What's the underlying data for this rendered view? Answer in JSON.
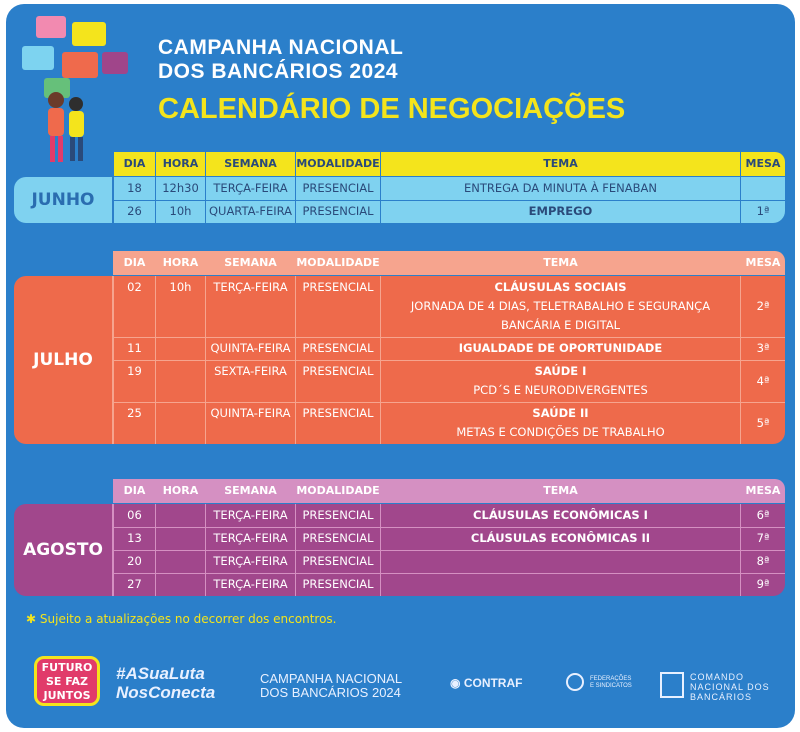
{
  "header": {
    "title_line1": "CAMPANHA NACIONAL",
    "title_line2": "DOS BANCÁRIOS 2024",
    "subtitle": "CALENDÁRIO DE NEGOCIAÇÕES"
  },
  "columns": [
    "DIA",
    "HORA",
    "SEMANA",
    "MODALIDADE",
    "TEMA",
    "MESA"
  ],
  "sections": [
    {
      "month": "JUNHO",
      "rows": [
        {
          "dia": "18",
          "hora": "12h30",
          "semana": "TERÇA-FEIRA",
          "modalidade": "PRESENCIAL",
          "detail": [
            "ENTREGA DA MINUTA À FENABAN"
          ]
        },
        {
          "dia": "26",
          "hora": "10h",
          "semana": "QUARTA-FEIRA",
          "modalidade": "PRESENCIAL",
          "topic": "EMPREGO",
          "mesa": "1ª"
        }
      ]
    },
    {
      "month": "JULHO",
      "rows": [
        {
          "dia": "02",
          "hora": "10h",
          "semana": "TERÇA-FEIRA",
          "modalidade": "PRESENCIAL",
          "topic": "CLÁUSULAS SOCIAIS",
          "detail": [
            "JORNADA DE 4 DIAS, TELETRABALHO E SEGURANÇA",
            "BANCÁRIA E DIGITAL"
          ],
          "mesa": "2ª"
        },
        {
          "dia": "11",
          "semana": "QUINTA-FEIRA",
          "modalidade": "PRESENCIAL",
          "topic": "IGUALDADE DE OPORTUNIDADE",
          "mesa": "3ª"
        },
        {
          "dia": "19",
          "semana": "SEXTA-FEIRA",
          "modalidade": "PRESENCIAL",
          "topic": "SAÚDE I",
          "detail": [
            "PCD´S E NEURODIVERGENTES"
          ],
          "mesa": "4ª"
        },
        {
          "dia": "25",
          "semana": "QUINTA-FEIRA",
          "modalidade": "PRESENCIAL",
          "topic": "SAÚDE II",
          "detail": [
            "METAS E CONDIÇÕES DE TRABALHO"
          ],
          "mesa": "5ª"
        }
      ]
    },
    {
      "month": "AGOSTO",
      "rows": [
        {
          "dia": "06",
          "semana": "TERÇA-FEIRA",
          "modalidade": "PRESENCIAL",
          "topic": "CLÁUSULAS ECONÔMICAS I",
          "mesa": "6ª"
        },
        {
          "dia": "13",
          "semana": "TERÇA-FEIRA",
          "modalidade": "PRESENCIAL",
          "topic": "CLÁUSULAS ECONÔMICAS II",
          "mesa": "7ª"
        },
        {
          "dia": "20",
          "semana": "TERÇA-FEIRA",
          "modalidade": "PRESENCIAL",
          "mesa": "8ª"
        },
        {
          "dia": "27",
          "semana": "TERÇA-FEIRA",
          "modalidade": "PRESENCIAL",
          "mesa": "9ª"
        }
      ]
    }
  ],
  "note": {
    "mark": "✱",
    "text": "Sujeito a atualizações no decorrer dos encontros."
  },
  "footer": {
    "logo1": [
      "FUTURO",
      "SE FAZ",
      "JUNTOS"
    ],
    "hashtag": [
      "#ASuaLuta",
      "NosConecta"
    ],
    "campaign": [
      "CAMPANHA NACIONAL",
      "DOS BANCÁRIOS 2024"
    ],
    "contraf": "CONTRAF",
    "federacoes": [
      "FEDERAÇÕES",
      "E SINDICATOS"
    ],
    "comando": [
      "COMANDO",
      "NACIONAL DOS",
      "BANCÁRIOS"
    ]
  }
}
